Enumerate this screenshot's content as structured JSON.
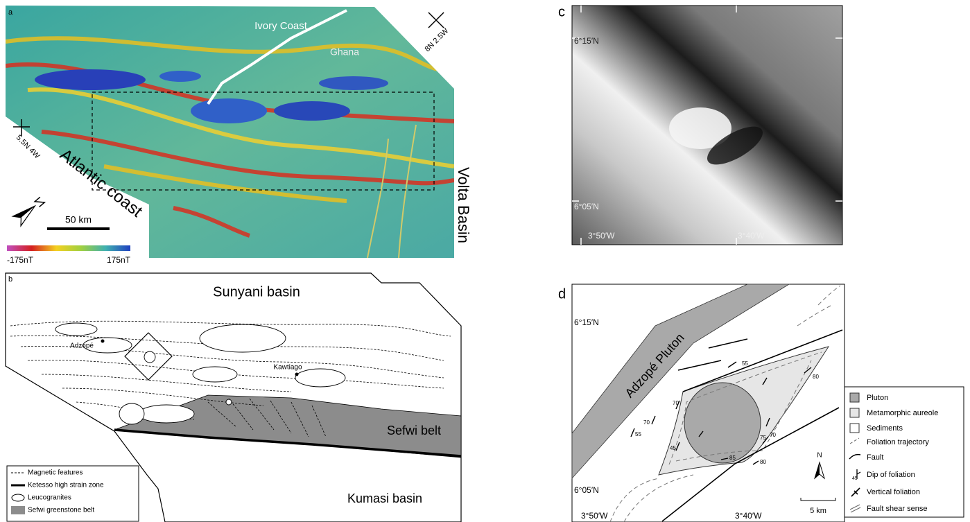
{
  "panel_a": {
    "label": "a",
    "places": [
      "Ivory Coast",
      "Ghana",
      "Atlantic coast",
      "Volta Basin"
    ],
    "coordinates": [
      "8N 2.5W",
      "5.5N 4W"
    ],
    "scale_bar": "50 km",
    "colorbar": [
      "-175nT",
      "175nT"
    ]
  },
  "panel_b": {
    "label": "b",
    "regions": [
      "Sunyani basin",
      "Sefwi belt",
      "Kumasi basin"
    ],
    "towns": [
      "Adzopé",
      "Kawtiago"
    ],
    "legend": [
      "Magnetic features",
      "Ketesso high strain zone",
      "Leucogranites",
      "Sefwi greenstone belt"
    ]
  },
  "panel_c": {
    "label": "c",
    "lat": [
      "6°15′N",
      "6°05′N"
    ],
    "lon": [
      "3°50′W",
      "3°40′W"
    ]
  },
  "panel_d": {
    "label": "d",
    "lat": [
      "6°15′N",
      "6°05′N"
    ],
    "lon": [
      "3°50′W",
      "3°40′W"
    ],
    "pluton": "Adzopé Pluton",
    "dips": [
      "55",
      "80",
      "70",
      "70",
      "55",
      "45",
      "70",
      "75",
      "85",
      "80"
    ],
    "north": "N",
    "scale_bar": "5 km",
    "legend": [
      "Pluton",
      "Metamorphic aureole",
      "Sediments",
      "Foliation trajectory",
      "Fault",
      "Dip of foliation",
      "Vertical foliation",
      "Fault shear sense"
    ],
    "legend_dip_example": "45"
  }
}
